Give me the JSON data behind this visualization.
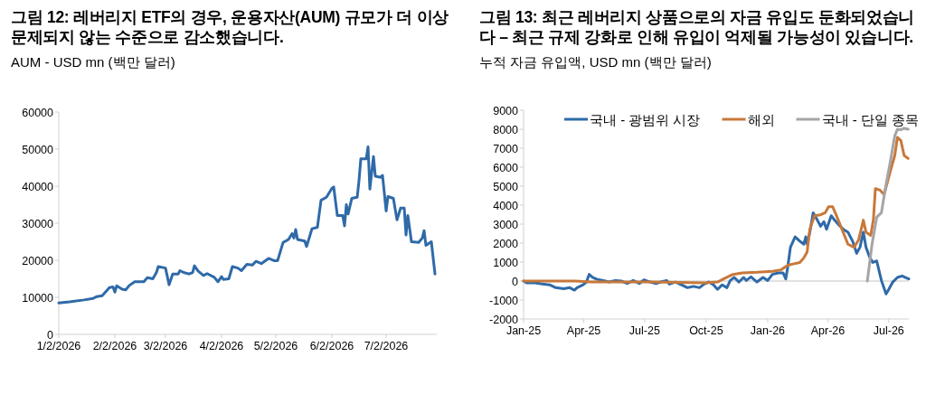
{
  "chart_data": [
    {
      "type": "line",
      "title": "그림 12: 레버리지 ETF의 경우, 운용자산(AUM) 규모가 더 이상 문제되지 않는 수준으로 감소했습니다.",
      "subtitle": "AUM - USD mn (백만 달러)",
      "x": [
        "2026-01-02",
        "2026-01-08",
        "2026-01-16",
        "2026-01-21",
        "2026-01-23",
        "2026-01-26",
        "2026-01-30",
        "2026-02-01",
        "2026-02-02",
        "2026-02-03",
        "2026-02-06",
        "2026-02-08",
        "2026-02-10",
        "2026-02-13",
        "2026-02-18",
        "2026-02-20",
        "2026-02-23",
        "2026-02-25",
        "2026-02-26",
        "2026-03-02",
        "2026-03-04",
        "2026-03-06",
        "2026-03-09",
        "2026-03-10",
        "2026-03-12",
        "2026-03-15",
        "2026-03-17",
        "2026-03-18",
        "2026-03-20",
        "2026-03-23",
        "2026-03-25",
        "2026-03-29",
        "2026-03-31",
        "2026-04-02",
        "2026-04-03",
        "2026-04-06",
        "2026-04-08",
        "2026-04-11",
        "2026-04-13",
        "2026-04-16",
        "2026-04-19",
        "2026-04-21",
        "2026-04-24",
        "2026-04-28",
        "2026-05-01",
        "2026-05-03",
        "2026-05-06",
        "2026-05-09",
        "2026-05-11",
        "2026-05-12",
        "2026-05-13",
        "2026-05-14",
        "2026-05-18",
        "2026-05-19",
        "2026-05-22",
        "2026-05-25",
        "2026-05-27",
        "2026-05-30",
        "2026-06-02",
        "2026-06-03",
        "2026-06-05",
        "2026-06-08",
        "2026-06-09",
        "2026-06-10",
        "2026-06-11",
        "2026-06-13",
        "2026-06-16",
        "2026-06-17",
        "2026-06-18",
        "2026-06-21",
        "2026-06-22",
        "2026-06-23",
        "2026-06-25",
        "2026-06-26",
        "2026-06-29",
        "2026-06-30",
        "2026-07-02",
        "2026-07-03",
        "2026-07-06",
        "2026-07-08",
        "2026-07-10",
        "2026-07-12",
        "2026-07-13",
        "2026-07-14",
        "2026-07-16",
        "2026-07-20",
        "2026-07-22",
        "2026-07-23",
        "2026-07-24",
        "2026-07-27",
        "2026-07-29"
      ],
      "series": [
        {
          "color": "#2f6aa8",
          "values": [
            8500,
            8800,
            9300,
            9700,
            10200,
            10400,
            12600,
            12800,
            11400,
            13100,
            12200,
            12000,
            13200,
            14200,
            14200,
            15300,
            15000,
            16700,
            18300,
            17900,
            13400,
            16300,
            16300,
            17200,
            16700,
            16300,
            16700,
            18500,
            17100,
            15900,
            16400,
            15400,
            14200,
            15600,
            14800,
            15000,
            18300,
            17900,
            17200,
            18900,
            18700,
            19700,
            19100,
            20500,
            19900,
            19900,
            24800,
            25600,
            27200,
            26000,
            28300,
            25600,
            25200,
            23700,
            28500,
            28900,
            36200,
            37000,
            39400,
            39800,
            32100,
            32100,
            29300,
            35000,
            32500,
            36700,
            37000,
            41500,
            47400,
            47400,
            50600,
            39200,
            48000,
            42700,
            42400,
            42900,
            33300,
            37200,
            36700,
            30900,
            34100,
            34100,
            26800,
            32100,
            25000,
            24800,
            26000,
            28000,
            24000,
            25000,
            16300
          ]
        }
      ],
      "xlim": [
        "2026-01-02",
        "2026-07-30"
      ],
      "xticks": [
        {
          "value": "2026-01-02",
          "label": "1/2/2026"
        },
        {
          "value": "2026-02-02",
          "label": "2/2/2026"
        },
        {
          "value": "2026-03-02",
          "label": "3/2/2026"
        },
        {
          "value": "2026-04-02",
          "label": "4/2/2026"
        },
        {
          "value": "2026-05-02",
          "label": "5/2/2026"
        },
        {
          "value": "2026-06-02",
          "label": "6/2/2026"
        },
        {
          "value": "2026-07-02",
          "label": "7/2/2026"
        }
      ],
      "ylim": [
        0,
        60000
      ],
      "yticks": [
        0,
        10000,
        20000,
        30000,
        40000,
        50000,
        60000
      ],
      "grid": false,
      "legend": false,
      "line_style": "solid",
      "marker": "none"
    },
    {
      "type": "line",
      "title": "그림 13: 최근 레버리지 상품으로의 자금 유입도 둔화되었습니다 – 최근 규제 강화로 인해 유입이 억제될 가능성이 있습니다.",
      "subtitle": "누적 자금 유입액, USD mn (백만 달러)",
      "series": [
        {
          "name": "국내 - 광범위 시장",
          "color": "#2f6aa8",
          "x": [
            "2025-01-01",
            "2025-01-06",
            "2025-01-18",
            "2025-01-29",
            "2025-02-09",
            "2025-02-18",
            "2025-03-02",
            "2025-03-11",
            "2025-03-18",
            "2025-03-22",
            "2025-03-31",
            "2025-04-05",
            "2025-04-09",
            "2025-04-14",
            "2025-04-20",
            "2025-04-30",
            "2025-05-09",
            "2025-05-18",
            "2025-05-27",
            "2025-06-05",
            "2025-06-14",
            "2025-06-23",
            "2025-06-30",
            "2025-07-09",
            "2025-07-18",
            "2025-07-25",
            "2025-08-03",
            "2025-08-07",
            "2025-08-16",
            "2025-08-25",
            "2025-09-03",
            "2025-09-12",
            "2025-09-21",
            "2025-09-28",
            "2025-10-05",
            "2025-10-12",
            "2025-10-18",
            "2025-10-25",
            "2025-11-01",
            "2025-11-06",
            "2025-11-12",
            "2025-11-19",
            "2025-11-26",
            "2025-11-30",
            "2025-12-07",
            "2025-12-16",
            "2025-12-25",
            "2026-01-01",
            "2026-01-08",
            "2026-01-17",
            "2026-01-24",
            "2026-01-28",
            "2026-01-31",
            "2026-02-04",
            "2026-02-11",
            "2026-02-18",
            "2026-02-24",
            "2026-02-27",
            "2026-03-01",
            "2026-03-05",
            "2026-03-10",
            "2026-03-15",
            "2026-03-21",
            "2026-03-26",
            "2026-03-30",
            "2026-04-06",
            "2026-04-11",
            "2026-04-17",
            "2026-04-24",
            "2026-05-01",
            "2026-05-08",
            "2026-05-14",
            "2026-05-19",
            "2026-05-24",
            "2026-05-28",
            "2026-06-02",
            "2026-06-07",
            "2026-06-13",
            "2026-06-20",
            "2026-06-27",
            "2026-07-01",
            "2026-07-07",
            "2026-07-14",
            "2026-07-21",
            "2026-07-26",
            "2026-07-31"
          ],
          "values": [
            0,
            -100,
            -100,
            -150,
            -200,
            -350,
            -400,
            -350,
            -480,
            -350,
            -200,
            -50,
            350,
            200,
            100,
            30,
            -50,
            30,
            0,
            -130,
            30,
            -130,
            60,
            -50,
            -130,
            -50,
            30,
            -160,
            -50,
            -200,
            -350,
            -280,
            -350,
            -160,
            -50,
            -200,
            -440,
            -200,
            -350,
            30,
            190,
            -50,
            190,
            30,
            220,
            -50,
            190,
            30,
            350,
            430,
            430,
            110,
            750,
            1780,
            2330,
            2100,
            1940,
            2330,
            1940,
            2570,
            3600,
            3290,
            2890,
            3130,
            2730,
            3440,
            3210,
            2970,
            2730,
            2570,
            2100,
            1460,
            1780,
            2570,
            1780,
            1300,
            980,
            1060,
            30,
            -680,
            -440,
            -50,
            190,
            270,
            190,
            110
          ]
        },
        {
          "name": "해외",
          "color": "#c8783a",
          "x": [
            "2025-01-01",
            "2025-03-20",
            "2025-04-11",
            "2025-07-11",
            "2025-09-30",
            "2025-10-18",
            "2025-10-27",
            "2025-11-10",
            "2025-11-24",
            "2025-12-16",
            "2026-01-08",
            "2026-01-21",
            "2026-01-31",
            "2026-02-08",
            "2026-02-18",
            "2026-02-24",
            "2026-03-01",
            "2026-03-05",
            "2026-03-12",
            "2026-03-21",
            "2026-03-28",
            "2026-04-02",
            "2026-04-08",
            "2026-04-13",
            "2026-04-22",
            "2026-05-01",
            "2026-05-10",
            "2026-05-17",
            "2026-05-24",
            "2026-05-28",
            "2026-06-04",
            "2026-06-08",
            "2026-06-11",
            "2026-06-18",
            "2026-06-24",
            "2026-07-03",
            "2026-07-10",
            "2026-07-14",
            "2026-07-19",
            "2026-07-24",
            "2026-07-30"
          ],
          "values": [
            0,
            0,
            -50,
            -50,
            -100,
            -50,
            110,
            350,
            430,
            460,
            510,
            590,
            830,
            900,
            980,
            1220,
            1540,
            2730,
            3440,
            3490,
            3600,
            3920,
            3920,
            3520,
            2730,
            1940,
            1780,
            2170,
            3210,
            2570,
            2410,
            3210,
            4870,
            4790,
            4560,
            5750,
            6620,
            7570,
            7410,
            6620,
            6460
          ]
        },
        {
          "name": "국내 - 단일 종목",
          "color": "#a5a5a5",
          "x": [
            "2026-05-30",
            "2026-06-06",
            "2026-06-13",
            "2026-06-20",
            "2026-06-27",
            "2026-07-03",
            "2026-07-10",
            "2026-07-14",
            "2026-07-19",
            "2026-07-24",
            "2026-07-30"
          ],
          "values": [
            0,
            1940,
            3360,
            3600,
            5110,
            6220,
            7650,
            8000,
            7970,
            8050,
            8000
          ]
        }
      ],
      "xlim": [
        "2025-01-01",
        "2026-07-31"
      ],
      "xticks": [
        {
          "value": "2025-01-01",
          "label": "Jan-25"
        },
        {
          "value": "2025-04-01",
          "label": "Apr-25"
        },
        {
          "value": "2025-07-01",
          "label": "Jul-25"
        },
        {
          "value": "2025-10-01",
          "label": "Oct-25"
        },
        {
          "value": "2026-01-01",
          "label": "Jan-26"
        },
        {
          "value": "2026-04-01",
          "label": "Apr-26"
        },
        {
          "value": "2026-07-01",
          "label": "Jul-26"
        }
      ],
      "ylim": [
        -2000,
        9000
      ],
      "yticks": [
        -2000,
        -1000,
        0,
        1000,
        2000,
        3000,
        4000,
        5000,
        6000,
        7000,
        8000,
        9000
      ],
      "ref_lines": [
        {
          "axis": "y",
          "value": 0,
          "color": "#d9d9d9"
        }
      ],
      "grid": false,
      "legend": "top",
      "line_style": "solid",
      "marker": "none"
    }
  ]
}
